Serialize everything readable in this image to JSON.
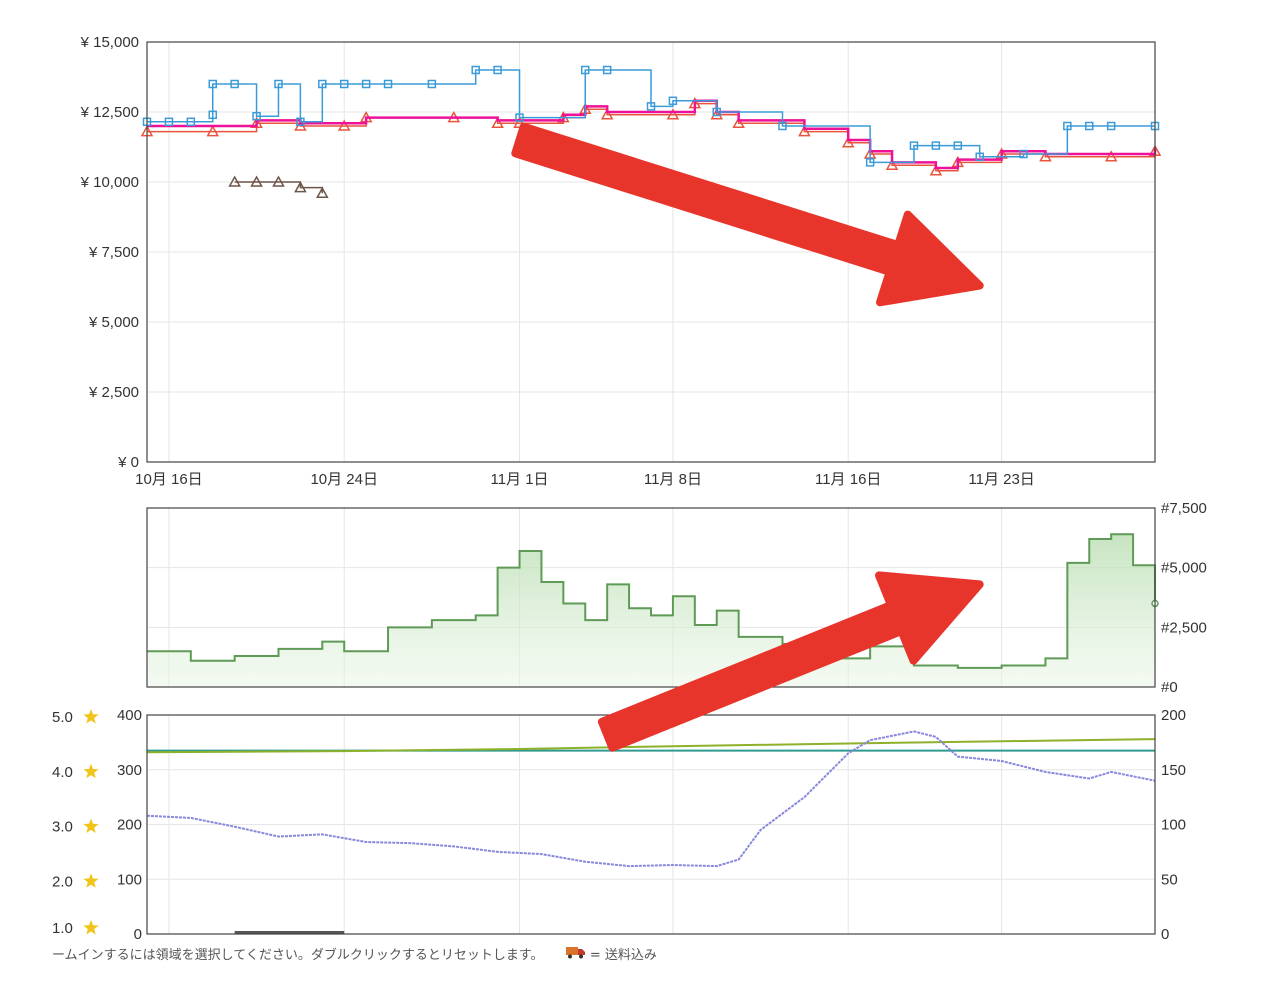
{
  "footer": {
    "hint_text": "ームインするには領域を選択してください。ダブルクリックするとリセットします。",
    "truck_icon": "truck-icon",
    "shipping_text": "= 送料込み"
  },
  "colors": {
    "amazon_new": "#e8543c",
    "new_3p": "#ee1199",
    "list_price": "#3b9bd8",
    "used": "#6d5548",
    "sales_rank": "#5f9a57",
    "rating": "#2f9a8f",
    "review_count": "#8888dd",
    "offer_count": "#8db12a",
    "arrow": "#e8352c"
  },
  "chart_data": [
    {
      "type": "line",
      "panel": "price",
      "x_type": "date",
      "xlim": [
        "2023-10-15",
        "2023-11-30"
      ],
      "x_ticks": [
        {
          "date": "2023-10-16",
          "label": "10月 16日"
        },
        {
          "date": "2023-10-24",
          "label": "10月 24日"
        },
        {
          "date": "2023-11-01",
          "label": "11月 1日"
        },
        {
          "date": "2023-11-08",
          "label": "11月 8日"
        },
        {
          "date": "2023-11-16",
          "label": "11月 16日"
        },
        {
          "date": "2023-11-23",
          "label": "11月 23日"
        }
      ],
      "ylim": [
        0,
        15000
      ],
      "y_ticks": [
        {
          "value": 0,
          "label": "¥ 0"
        },
        {
          "value": 2500,
          "label": "¥ 2,500"
        },
        {
          "value": 5000,
          "label": "¥ 5,000"
        },
        {
          "value": 7500,
          "label": "¥ 7,500"
        },
        {
          "value": 10000,
          "label": "¥ 10,000"
        },
        {
          "value": 12500,
          "label": "¥ 12,500"
        },
        {
          "value": 15000,
          "label": "¥ 15,000"
        }
      ],
      "grid": true,
      "series": [
        {
          "key": "amazon_new",
          "marker": "triangle",
          "points": [
            [
              "2023-10-15",
              11800
            ],
            [
              "2023-10-18",
              11800
            ],
            [
              "2023-10-20",
              12100
            ],
            [
              "2023-10-22",
              12000
            ],
            [
              "2023-10-24",
              12000
            ],
            [
              "2023-10-25",
              12300
            ],
            [
              "2023-10-29",
              12300
            ],
            [
              "2023-10-31",
              12100
            ],
            [
              "2023-11-01",
              12100
            ],
            [
              "2023-11-03",
              12300
            ],
            [
              "2023-11-04",
              12600
            ],
            [
              "2023-11-05",
              12400
            ],
            [
              "2023-11-08",
              12400
            ],
            [
              "2023-11-09",
              12800
            ],
            [
              "2023-11-10",
              12400
            ],
            [
              "2023-11-11",
              12100
            ],
            [
              "2023-11-14",
              11800
            ],
            [
              "2023-11-16",
              11400
            ],
            [
              "2023-11-17",
              11000
            ],
            [
              "2023-11-18",
              10600
            ],
            [
              "2023-11-20",
              10400
            ],
            [
              "2023-11-21",
              10700
            ],
            [
              "2023-11-23",
              11000
            ],
            [
              "2023-11-25",
              10900
            ],
            [
              "2023-11-28",
              10900
            ],
            [
              "2023-11-30",
              11100
            ]
          ]
        },
        {
          "key": "new_3p",
          "marker": "line",
          "points": [
            [
              "2023-10-15",
              12000
            ],
            [
              "2023-10-18",
              12000
            ],
            [
              "2023-10-20",
              12200
            ],
            [
              "2023-10-22",
              12100
            ],
            [
              "2023-10-24",
              12100
            ],
            [
              "2023-10-25",
              12300
            ],
            [
              "2023-10-29",
              12300
            ],
            [
              "2023-10-31",
              12200
            ],
            [
              "2023-11-01",
              12200
            ],
            [
              "2023-11-03",
              12400
            ],
            [
              "2023-11-04",
              12700
            ],
            [
              "2023-11-05",
              12500
            ],
            [
              "2023-11-08",
              12500
            ],
            [
              "2023-11-09",
              12900
            ],
            [
              "2023-11-10",
              12500
            ],
            [
              "2023-11-11",
              12200
            ],
            [
              "2023-11-14",
              11900
            ],
            [
              "2023-11-16",
              11500
            ],
            [
              "2023-11-17",
              11100
            ],
            [
              "2023-11-18",
              10700
            ],
            [
              "2023-11-20",
              10500
            ],
            [
              "2023-11-21",
              10800
            ],
            [
              "2023-11-23",
              11100
            ],
            [
              "2023-11-25",
              11000
            ],
            [
              "2023-11-28",
              11000
            ],
            [
              "2023-11-30",
              11200
            ]
          ]
        },
        {
          "key": "list_price",
          "marker": "square",
          "points": [
            [
              "2023-10-15",
              12150
            ],
            [
              "2023-10-16",
              12150
            ],
            [
              "2023-10-17",
              12150
            ],
            [
              "2023-10-18",
              12400
            ],
            [
              "2023-10-18",
              13500
            ],
            [
              "2023-10-19",
              13500
            ],
            [
              "2023-10-20",
              12350
            ],
            [
              "2023-10-21",
              13500
            ],
            [
              "2023-10-22",
              12150
            ],
            [
              "2023-10-23",
              13500
            ],
            [
              "2023-10-24",
              13500
            ],
            [
              "2023-10-25",
              13500
            ],
            [
              "2023-10-26",
              13500
            ],
            [
              "2023-10-28",
              13500
            ],
            [
              "2023-10-30",
              14000
            ],
            [
              "2023-10-31",
              14000
            ],
            [
              "2023-11-01",
              12300
            ],
            [
              "2023-11-04",
              14000
            ],
            [
              "2023-11-05",
              14000
            ],
            [
              "2023-11-07",
              12700
            ],
            [
              "2023-11-08",
              12900
            ],
            [
              "2023-11-10",
              12500
            ],
            [
              "2023-11-13",
              12000
            ],
            [
              "2023-11-17",
              10700
            ],
            [
              "2023-11-19",
              11300
            ],
            [
              "2023-11-20",
              11300
            ],
            [
              "2023-11-21",
              11300
            ],
            [
              "2023-11-22",
              10900
            ],
            [
              "2023-11-24",
              11000
            ],
            [
              "2023-11-26",
              12000
            ],
            [
              "2023-11-27",
              12000
            ],
            [
              "2023-11-28",
              12000
            ],
            [
              "2023-11-30",
              12000
            ]
          ]
        },
        {
          "key": "used",
          "marker": "triangle",
          "points": [
            [
              "2023-10-19",
              10000
            ],
            [
              "2023-10-20",
              10000
            ],
            [
              "2023-10-21",
              10000
            ],
            [
              "2023-10-22",
              9800
            ],
            [
              "2023-10-23",
              9600
            ]
          ]
        }
      ],
      "annotations": [
        {
          "type": "arrow",
          "direction": "down-right",
          "from": [
            "2023-11-01",
            11500
          ],
          "to": [
            "2023-11-22",
            6300
          ]
        }
      ]
    },
    {
      "type": "area",
      "panel": "sales_rank",
      "x_type": "date",
      "xlim": [
        "2023-10-15",
        "2023-11-30"
      ],
      "ylim": [
        0,
        7500
      ],
      "y_ticks": [
        {
          "value": 0,
          "label": "#0"
        },
        {
          "value": 2500,
          "label": "#2,500"
        },
        {
          "value": 5000,
          "label": "#5,000"
        },
        {
          "value": 7500,
          "label": "#7,500"
        }
      ],
      "grid": true,
      "series": [
        {
          "key": "sales_rank",
          "points": [
            [
              "2023-10-15",
              1500
            ],
            [
              "2023-10-17",
              1100
            ],
            [
              "2023-10-19",
              1300
            ],
            [
              "2023-10-21",
              1600
            ],
            [
              "2023-10-23",
              1900
            ],
            [
              "2023-10-24",
              1500
            ],
            [
              "2023-10-26",
              2500
            ],
            [
              "2023-10-28",
              2800
            ],
            [
              "2023-10-30",
              3000
            ],
            [
              "2023-10-31",
              5000
            ],
            [
              "2023-11-01",
              5700
            ],
            [
              "2023-11-02",
              4400
            ],
            [
              "2023-11-03",
              3500
            ],
            [
              "2023-11-04",
              2800
            ],
            [
              "2023-11-05",
              4300
            ],
            [
              "2023-11-06",
              3300
            ],
            [
              "2023-11-07",
              3000
            ],
            [
              "2023-11-08",
              3800
            ],
            [
              "2023-11-09",
              2600
            ],
            [
              "2023-11-10",
              3200
            ],
            [
              "2023-11-11",
              2100
            ],
            [
              "2023-11-13",
              1800
            ],
            [
              "2023-11-15",
              1200
            ],
            [
              "2023-11-17",
              1700
            ],
            [
              "2023-11-19",
              900
            ],
            [
              "2023-11-21",
              800
            ],
            [
              "2023-11-23",
              900
            ],
            [
              "2023-11-25",
              1200
            ],
            [
              "2023-11-26",
              5200
            ],
            [
              "2023-11-27",
              6200
            ],
            [
              "2023-11-28",
              6400
            ],
            [
              "2023-11-29",
              5100
            ],
            [
              "2023-11-30",
              3500
            ]
          ]
        }
      ],
      "annotations": [
        {
          "type": "arrow",
          "direction": "up-right",
          "from": [
            "2023-11-05",
            -2000
          ],
          "to": [
            "2023-11-22",
            4300
          ]
        }
      ]
    },
    {
      "type": "line",
      "panel": "reviews",
      "x_type": "date",
      "xlim": [
        "2023-10-15",
        "2023-11-30"
      ],
      "y_left_ticks": [
        {
          "value": 0,
          "label": "0"
        },
        {
          "value": 100,
          "label": "100"
        },
        {
          "value": 200,
          "label": "200"
        },
        {
          "value": 300,
          "label": "300"
        },
        {
          "value": 400,
          "label": "400"
        }
      ],
      "rating_ticks": [
        {
          "value": 1.0,
          "label": "1.0"
        },
        {
          "value": 2.0,
          "label": "2.0"
        },
        {
          "value": 3.0,
          "label": "3.0"
        },
        {
          "value": 4.0,
          "label": "4.0"
        },
        {
          "value": 5.0,
          "label": "5.0"
        }
      ],
      "y_right_ticks": [
        {
          "value": 0,
          "label": "0"
        },
        {
          "value": 50,
          "label": "50"
        },
        {
          "value": 100,
          "label": "100"
        },
        {
          "value": 150,
          "label": "150"
        },
        {
          "value": 200,
          "label": "200"
        }
      ],
      "ylim_left": [
        0,
        400
      ],
      "ylim_right": [
        0,
        200
      ],
      "star_icon": "star-icon",
      "grid": true,
      "series": [
        {
          "key": "rating",
          "axis": "left",
          "points": [
            [
              "2023-10-15",
              335
            ],
            [
              "2023-11-30",
              335
            ]
          ]
        },
        {
          "key": "offer_count",
          "axis": "left",
          "points": [
            [
              "2023-10-15",
              332
            ],
            [
              "2023-10-24",
              334
            ],
            [
              "2023-11-01",
              338
            ],
            [
              "2023-11-08",
              343
            ],
            [
              "2023-11-16",
              348
            ],
            [
              "2023-11-23",
              352
            ],
            [
              "2023-11-30",
              356
            ]
          ]
        },
        {
          "key": "review_count",
          "axis": "right",
          "points": [
            [
              "2023-10-15",
              108
            ],
            [
              "2023-10-17",
              106
            ],
            [
              "2023-10-19",
              98
            ],
            [
              "2023-10-21",
              89
            ],
            [
              "2023-10-23",
              91
            ],
            [
              "2023-10-25",
              84
            ],
            [
              "2023-10-27",
              83
            ],
            [
              "2023-10-29",
              80
            ],
            [
              "2023-10-31",
              75
            ],
            [
              "2023-11-02",
              73
            ],
            [
              "2023-11-04",
              66
            ],
            [
              "2023-11-06",
              62
            ],
            [
              "2023-11-08",
              63
            ],
            [
              "2023-11-10",
              62
            ],
            [
              "2023-11-11",
              68
            ],
            [
              "2023-11-12",
              95
            ],
            [
              "2023-11-14",
              125
            ],
            [
              "2023-11-16",
              165
            ],
            [
              "2023-11-17",
              177
            ],
            [
              "2023-11-19",
              185
            ],
            [
              "2023-11-20",
              180
            ],
            [
              "2023-11-21",
              162
            ],
            [
              "2023-11-23",
              158
            ],
            [
              "2023-11-25",
              148
            ],
            [
              "2023-11-27",
              142
            ],
            [
              "2023-11-28",
              148
            ],
            [
              "2023-11-30",
              140
            ]
          ]
        }
      ],
      "annotations": []
    }
  ]
}
